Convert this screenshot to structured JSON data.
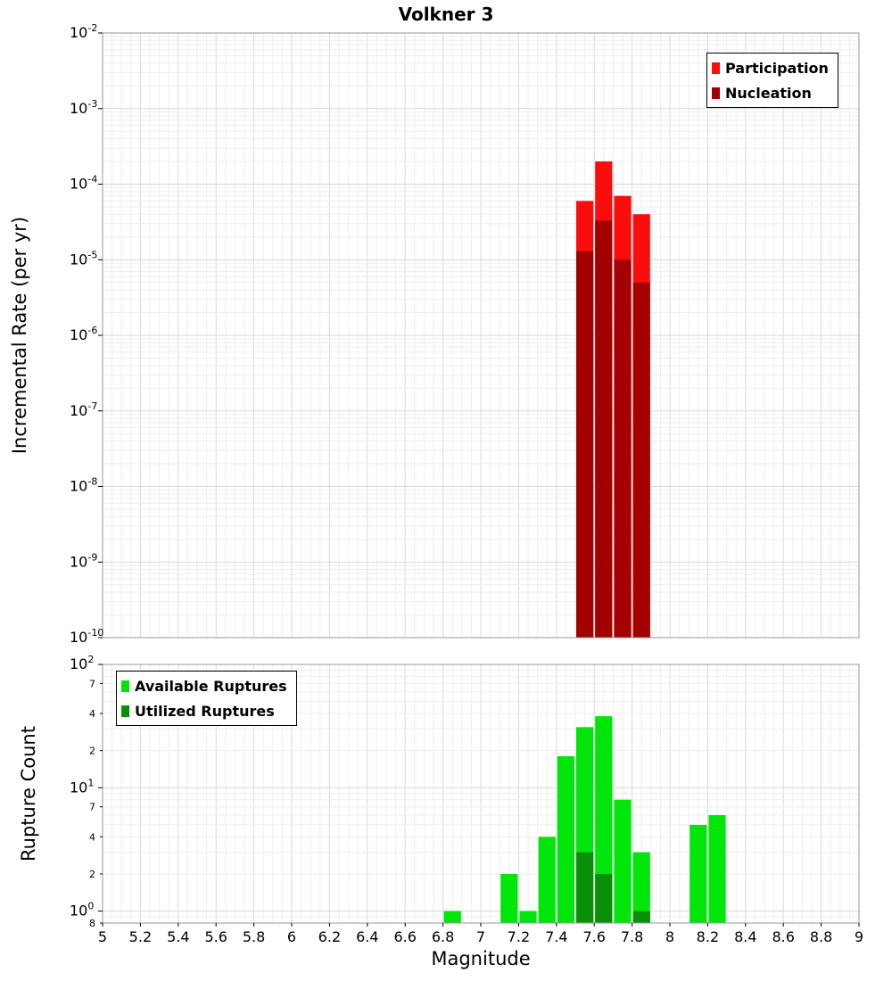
{
  "title": "Volkner 3",
  "chart_data": [
    {
      "id": "incremental-rate-plot",
      "type": "bar",
      "title": "Volkner 3",
      "ylabel": "Incremental Rate (per yr)",
      "xlabel": "Magnitude",
      "y_scale": "log",
      "xlim": [
        5,
        9
      ],
      "ylim": [
        1e-10,
        0.01
      ],
      "y_decades": [
        -2,
        -3,
        -4,
        -5,
        -6,
        -7,
        -8,
        -9,
        -10
      ],
      "bin_width": 0.1,
      "grid": true,
      "legend_position": "top-right",
      "series": [
        {
          "name": "Participation",
          "color": "#fb0d0d",
          "x": [
            7.55,
            7.65,
            7.75,
            7.85
          ],
          "values": [
            6e-05,
            0.0002,
            7e-05,
            4e-05
          ]
        },
        {
          "name": "Nucleation",
          "color": "#a40000",
          "x": [
            7.55,
            7.65,
            7.75,
            7.85
          ],
          "values": [
            1.3e-05,
            3.3e-05,
            1e-05,
            5e-06
          ]
        }
      ]
    },
    {
      "id": "rupture-count-plot",
      "type": "bar",
      "title": "",
      "ylabel": "Rupture Count",
      "xlabel": "Magnitude",
      "y_scale": "log",
      "xlim": [
        5,
        9
      ],
      "ylim": [
        0.8,
        100
      ],
      "y_decades": [
        0,
        1,
        2
      ],
      "y_minor_labeled": [
        {
          "value": 70,
          "label": "7"
        },
        {
          "value": 40,
          "label": "4"
        },
        {
          "value": 20,
          "label": "2"
        },
        {
          "value": 7,
          "label": "7"
        },
        {
          "value": 4,
          "label": "4"
        },
        {
          "value": 2,
          "label": "2"
        },
        {
          "value": 0.8,
          "label": "8"
        }
      ],
      "bin_width": 0.1,
      "grid": true,
      "legend_position": "top-left",
      "x_ticks": [
        {
          "value": 5,
          "label": "5"
        },
        {
          "value": 5.2,
          "label": "5.2"
        },
        {
          "value": 5.4,
          "label": "5.4"
        },
        {
          "value": 5.6,
          "label": "5.6"
        },
        {
          "value": 5.8,
          "label": "5.8"
        },
        {
          "value": 6,
          "label": "6"
        },
        {
          "value": 6.2,
          "label": "6.2"
        },
        {
          "value": 6.4,
          "label": "6.4"
        },
        {
          "value": 6.6,
          "label": "6.6"
        },
        {
          "value": 6.8,
          "label": "6.8"
        },
        {
          "value": 7,
          "label": "7"
        },
        {
          "value": 7.2,
          "label": "7.2"
        },
        {
          "value": 7.4,
          "label": "7.4"
        },
        {
          "value": 7.6,
          "label": "7.6"
        },
        {
          "value": 7.8,
          "label": "7.8"
        },
        {
          "value": 8,
          "label": "8"
        },
        {
          "value": 8.2,
          "label": "8.2"
        },
        {
          "value": 8.4,
          "label": "8.4"
        },
        {
          "value": 8.6,
          "label": "8.6"
        },
        {
          "value": 8.8,
          "label": "8.8"
        },
        {
          "value": 9,
          "label": "9"
        }
      ],
      "series": [
        {
          "name": "Available Ruptures",
          "color": "#00e50a",
          "x": [
            6.85,
            7.15,
            7.25,
            7.35,
            7.45,
            7.55,
            7.65,
            7.75,
            7.85,
            8.15,
            8.25
          ],
          "values": [
            1,
            2,
            1,
            4,
            18,
            31,
            38,
            8,
            3,
            5,
            6
          ]
        },
        {
          "name": "Utilized Ruptures",
          "color": "#0a9008",
          "x": [
            7.55,
            7.65,
            7.85
          ],
          "values": [
            3,
            2,
            1
          ]
        }
      ]
    }
  ]
}
